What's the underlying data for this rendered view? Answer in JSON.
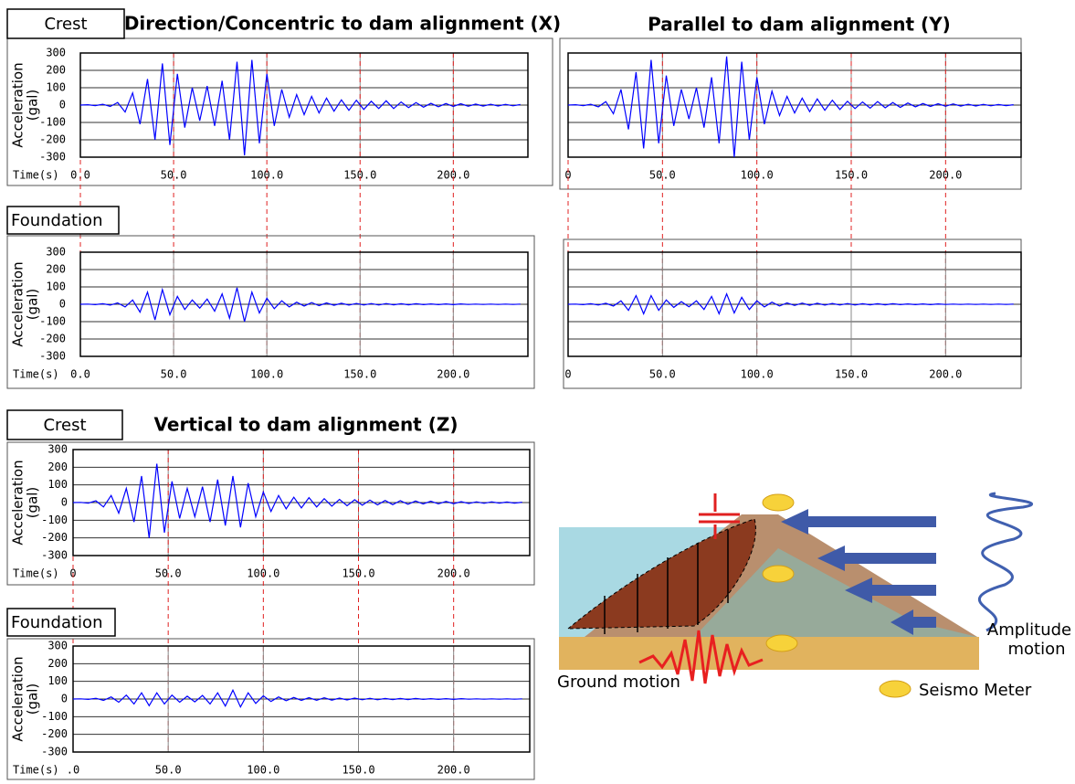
{
  "chart_data": [
    {
      "type": "line",
      "panel": "Crest",
      "title": "Direction/Concentric to dam alignment (X)",
      "xlabel": "Time(s)",
      "ylabel": [
        "Acceleration",
        "(gal)"
      ],
      "color": "#0000ff",
      "xlim": [
        0,
        240
      ],
      "ylim": [
        -300,
        300
      ],
      "xticks": [
        {
          "value": 0,
          "label": "0.0"
        },
        {
          "value": 50,
          "label": "50.0"
        },
        {
          "value": 100,
          "label": "100.0"
        },
        {
          "value": 150,
          "label": "150.0"
        },
        {
          "value": 200,
          "label": "200.0"
        }
      ],
      "yticks": [
        -300,
        -200,
        -100,
        0,
        100,
        200,
        300
      ],
      "show_ytick_labels": true,
      "grid": true,
      "x": [
        0,
        4,
        8,
        12,
        16,
        20,
        24,
        28,
        32,
        36,
        40,
        44,
        48,
        52,
        56,
        60,
        64,
        68,
        72,
        76,
        80,
        84,
        88,
        92,
        96,
        100,
        104,
        108,
        112,
        116,
        120,
        124,
        128,
        132,
        136,
        140,
        144,
        148,
        152,
        156,
        160,
        164,
        168,
        172,
        176,
        180,
        184,
        188,
        192,
        196,
        200,
        204,
        208,
        212,
        216,
        220,
        224,
        228,
        232,
        236
      ],
      "values": [
        0,
        2,
        -3,
        5,
        -8,
        15,
        -40,
        70,
        -110,
        150,
        -200,
        240,
        -230,
        180,
        -130,
        100,
        -90,
        110,
        -120,
        140,
        -200,
        250,
        -290,
        260,
        -220,
        180,
        -120,
        90,
        -70,
        60,
        -55,
        50,
        -45,
        40,
        -35,
        30,
        -30,
        28,
        -25,
        22,
        -20,
        25,
        -20,
        18,
        -15,
        14,
        -12,
        10,
        -10,
        9,
        -8,
        8,
        -7,
        6,
        -6,
        5,
        -5,
        4,
        -4,
        3
      ]
    },
    {
      "type": "line",
      "panel": "Foundation",
      "xlabel": "Time(s)",
      "ylabel": [
        "Acceleration",
        "(gal)"
      ],
      "color": "#0000ff",
      "xlim": [
        0,
        240
      ],
      "ylim": [
        -300,
        300
      ],
      "xticks": [
        {
          "value": 0,
          "label": "0.0"
        },
        {
          "value": 50,
          "label": "50.0"
        },
        {
          "value": 100,
          "label": "100.0"
        },
        {
          "value": 150,
          "label": "150.0"
        },
        {
          "value": 200,
          "label": "200.0"
        }
      ],
      "yticks": [
        -300,
        -200,
        -100,
        0,
        100,
        200,
        300
      ],
      "show_ytick_labels": true,
      "grid": true,
      "x": [
        0,
        4,
        8,
        12,
        16,
        20,
        24,
        28,
        32,
        36,
        40,
        44,
        48,
        52,
        56,
        60,
        64,
        68,
        72,
        76,
        80,
        84,
        88,
        92,
        96,
        100,
        104,
        108,
        112,
        116,
        120,
        124,
        128,
        132,
        136,
        140,
        144,
        148,
        152,
        156,
        160,
        164,
        168,
        172,
        176,
        180,
        184,
        188,
        192,
        196,
        200,
        204,
        208,
        212,
        216,
        220,
        224,
        228,
        232,
        236
      ],
      "values": [
        0,
        1,
        -2,
        3,
        -5,
        8,
        -15,
        25,
        -45,
        70,
        -90,
        85,
        -60,
        45,
        -30,
        25,
        -22,
        30,
        -40,
        60,
        -80,
        95,
        -100,
        70,
        -50,
        35,
        -25,
        20,
        -15,
        12,
        -10,
        10,
        -8,
        8,
        -6,
        6,
        -5,
        5,
        -4,
        4,
        -4,
        4,
        -3,
        3,
        -3,
        3,
        -2,
        2,
        -2,
        2,
        -2,
        2,
        -1,
        1,
        -1,
        1,
        -1,
        1,
        -1,
        1
      ]
    },
    {
      "type": "line",
      "title": "Parallel to dam alignment (Y)",
      "color": "#0000ff",
      "xlim": [
        0,
        240
      ],
      "ylim": [
        -300,
        300
      ],
      "xticks": [
        0,
        {
          "value": 50,
          "label": "50.0"
        },
        {
          "value": 100,
          "label": "100.0"
        },
        {
          "value": 150,
          "label": "150.0"
        },
        {
          "value": 200,
          "label": "200.0"
        }
      ],
      "yticks": [
        -300,
        -200,
        -100,
        0,
        100,
        200,
        300
      ],
      "show_ytick_labels": false,
      "grid": true,
      "x": [
        0,
        4,
        8,
        12,
        16,
        20,
        24,
        28,
        32,
        36,
        40,
        44,
        48,
        52,
        56,
        60,
        64,
        68,
        72,
        76,
        80,
        84,
        88,
        92,
        96,
        100,
        104,
        108,
        112,
        116,
        120,
        124,
        128,
        132,
        136,
        140,
        144,
        148,
        152,
        156,
        160,
        164,
        168,
        172,
        176,
        180,
        184,
        188,
        192,
        196,
        200,
        204,
        208,
        212,
        216,
        220,
        224,
        228,
        232,
        236
      ],
      "values": [
        0,
        2,
        -3,
        5,
        -10,
        20,
        -50,
        90,
        -140,
        190,
        -250,
        260,
        -220,
        170,
        -120,
        90,
        -80,
        100,
        -130,
        160,
        -220,
        280,
        -300,
        250,
        -200,
        160,
        -110,
        80,
        -60,
        50,
        -45,
        40,
        -38,
        35,
        -30,
        28,
        -25,
        22,
        -20,
        18,
        -18,
        20,
        -16,
        15,
        -13,
        12,
        -10,
        9,
        -8,
        8,
        -7,
        7,
        -6,
        5,
        -5,
        4,
        -4,
        3,
        -3,
        2
      ]
    },
    {
      "type": "line",
      "color": "#0000ff",
      "xlim": [
        0,
        240
      ],
      "ylim": [
        -300,
        300
      ],
      "xticks": [
        0,
        {
          "value": 50,
          "label": "50.0"
        },
        {
          "value": 100,
          "label": "100.0"
        },
        {
          "value": 150,
          "label": "150.0"
        },
        {
          "value": 200,
          "label": "200.0"
        }
      ],
      "yticks": [
        -300,
        -200,
        -100,
        0,
        100,
        200,
        300
      ],
      "show_ytick_labels": false,
      "grid": true,
      "x": [
        0,
        4,
        8,
        12,
        16,
        20,
        24,
        28,
        32,
        36,
        40,
        44,
        48,
        52,
        56,
        60,
        64,
        68,
        72,
        76,
        80,
        84,
        88,
        92,
        96,
        100,
        104,
        108,
        112,
        116,
        120,
        124,
        128,
        132,
        136,
        140,
        144,
        148,
        152,
        156,
        160,
        164,
        168,
        172,
        176,
        180,
        184,
        188,
        192,
        196,
        200,
        204,
        208,
        212,
        216,
        220,
        224,
        228,
        232,
        236
      ],
      "values": [
        0,
        1,
        -2,
        3,
        -4,
        6,
        -10,
        20,
        -35,
        50,
        -55,
        50,
        -35,
        25,
        -18,
        15,
        -14,
        20,
        -30,
        45,
        -55,
        60,
        -50,
        40,
        -30,
        20,
        -15,
        12,
        -10,
        8,
        -7,
        7,
        -6,
        6,
        -5,
        5,
        -4,
        4,
        -4,
        3,
        -3,
        3,
        -3,
        3,
        -2,
        2,
        -2,
        2,
        -2,
        2,
        -1,
        1,
        -1,
        1,
        -1,
        1,
        -1,
        1,
        -1,
        1
      ]
    },
    {
      "type": "line",
      "panel": "Crest",
      "title": "Vertical to dam alignment (Z)",
      "xlabel": "Time(s)",
      "ylabel": [
        "Acceleration",
        "(gal)"
      ],
      "color": "#0000ff",
      "xlim": [
        0,
        240
      ],
      "ylim": [
        -300,
        300
      ],
      "xticks": [
        0,
        {
          "value": 50,
          "label": "50.0"
        },
        {
          "value": 100,
          "label": "100.0"
        },
        {
          "value": 150,
          "label": "150.0"
        },
        {
          "value": 200,
          "label": "200.0"
        }
      ],
      "yticks": [
        -300,
        -200,
        -100,
        0,
        100,
        200,
        300
      ],
      "show_ytick_labels": true,
      "grid": true,
      "x": [
        0,
        4,
        8,
        12,
        16,
        20,
        24,
        28,
        32,
        36,
        40,
        44,
        48,
        52,
        56,
        60,
        64,
        68,
        72,
        76,
        80,
        84,
        88,
        92,
        96,
        100,
        104,
        108,
        112,
        116,
        120,
        124,
        128,
        132,
        136,
        140,
        144,
        148,
        152,
        156,
        160,
        164,
        168,
        172,
        176,
        180,
        184,
        188,
        192,
        196,
        200,
        204,
        208,
        212,
        216,
        220,
        224,
        228,
        232,
        236
      ],
      "values": [
        0,
        1,
        -3,
        10,
        -25,
        40,
        -60,
        80,
        -110,
        150,
        -200,
        220,
        -170,
        120,
        -90,
        80,
        -80,
        90,
        -110,
        130,
        -130,
        150,
        -140,
        110,
        -80,
        60,
        -50,
        40,
        -35,
        30,
        -30,
        28,
        -25,
        22,
        -20,
        18,
        -18,
        16,
        -15,
        14,
        -13,
        12,
        -12,
        11,
        -10,
        9,
        -8,
        8,
        -7,
        6,
        -6,
        5,
        -5,
        4,
        -4,
        4,
        -3,
        3,
        -3,
        2
      ]
    },
    {
      "type": "line",
      "panel": "Foundation",
      "xlabel": "Time(s)",
      "ylabel": [
        "Acceleration",
        "(gal)"
      ],
      "color": "#0000ff",
      "xlim": [
        0,
        240
      ],
      "ylim": [
        -300,
        300
      ],
      "xticks": [
        {
          "value": 0,
          "label": ".0"
        },
        {
          "value": 50,
          "label": "50.0"
        },
        {
          "value": 100,
          "label": "100.0"
        },
        {
          "value": 150,
          "label": "150.0"
        },
        {
          "value": 200,
          "label": "200.0"
        }
      ],
      "yticks": [
        -300,
        -200,
        -100,
        0,
        100,
        200,
        300
      ],
      "show_ytick_labels": true,
      "grid": true,
      "x": [
        0,
        4,
        8,
        12,
        16,
        20,
        24,
        28,
        32,
        36,
        40,
        44,
        48,
        52,
        56,
        60,
        64,
        68,
        72,
        76,
        80,
        84,
        88,
        92,
        96,
        100,
        104,
        108,
        112,
        116,
        120,
        124,
        128,
        132,
        136,
        140,
        144,
        148,
        152,
        156,
        160,
        164,
        168,
        172,
        176,
        180,
        184,
        188,
        192,
        196,
        200,
        204,
        208,
        212,
        216,
        220,
        224,
        228,
        232,
        236
      ],
      "values": [
        0,
        1,
        -2,
        4,
        -8,
        12,
        -18,
        22,
        -28,
        35,
        -38,
        35,
        -28,
        22,
        -18,
        16,
        -16,
        20,
        -28,
        35,
        -40,
        50,
        -45,
        35,
        -25,
        18,
        -14,
        12,
        -10,
        9,
        -8,
        8,
        -7,
        7,
        -6,
        5,
        -5,
        5,
        -4,
        4,
        -4,
        3,
        -3,
        3,
        -3,
        3,
        -2,
        2,
        -2,
        2,
        -2,
        2,
        -1,
        1,
        -1,
        1,
        -1,
        1,
        -1,
        1
      ]
    }
  ],
  "diagram": {
    "amplitude_motion": [
      "Amplitude",
      "motion"
    ],
    "ground_motion": "Ground motion",
    "seismo_meter": "Seismo Meter"
  }
}
